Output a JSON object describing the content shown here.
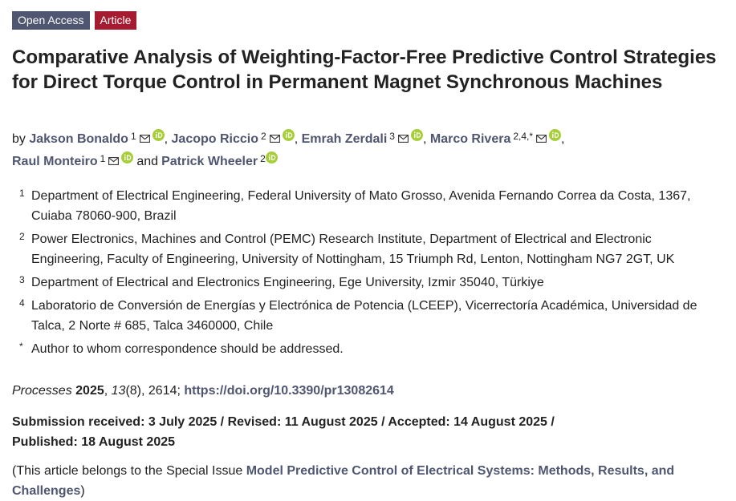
{
  "badges": {
    "open_access": "Open Access",
    "article": "Article"
  },
  "title": "Comparative Analysis of Weighting-Factor-Free Predictive Control Strategies for Direct Torque Control in Permanent Magnet Synchronous Machines",
  "authors": {
    "by": "by",
    "and": "and",
    "list": [
      {
        "name": "Jakson Bonaldo",
        "aff": "1"
      },
      {
        "name": "Jacopo Riccio",
        "aff": "2"
      },
      {
        "name": "Emrah Zerdali",
        "aff": "3"
      },
      {
        "name": "Marco Rivera",
        "aff": "2,4,*"
      },
      {
        "name": "Raul Monteiro",
        "aff": "1"
      },
      {
        "name": "Patrick Wheeler",
        "aff": "2"
      }
    ]
  },
  "affiliations": [
    {
      "num": "1",
      "text": "Department of Electrical Engineering, Federal University of Mato Grosso, Avenida Fernando Correa da Costa, 1367, Cuiaba 78060-900, Brazil"
    },
    {
      "num": "2",
      "text": "Power Electronics, Machines and Control (PEMC) Research Institute, Department of Electrical and Electronic Engineering, Faculty of Engineering, University of Nottingham, 15 Triumph Rd, Lenton, Nottingham NG7 2GT, UK"
    },
    {
      "num": "3",
      "text": "Department of Electrical and Electronics Engineering, Ege University, Izmir 35040, Türkiye"
    },
    {
      "num": "4",
      "text": "Laboratorio de Conversión de Energías y Electrónica de Potencia (LCEEP), Vicerrectoría Académica, Universidad de Talca, 2 Norte # 685, Talca 3460000, Chile"
    },
    {
      "num": "*",
      "text": "Author to whom correspondence should be addressed."
    }
  ],
  "citation": {
    "journal": "Processes",
    "year": "2025",
    "volume": "13",
    "issue": "(8)",
    "article_no": ", 2614; ",
    "doi": "https://doi.org/10.3390/pr13082614"
  },
  "dates": {
    "line1": "Submission received: 3 July 2025 / Revised: 11 August 2025 / Accepted: 14 August 2025 /",
    "line2": "Published: 18 August 2025"
  },
  "special_issue": {
    "prefix": "(This article belongs to the Special Issue ",
    "link": "Model Predictive Control of Electrical Systems: Methods, Results, and Challenges",
    "suffix": ")"
  },
  "colors": {
    "link": "#4f5671",
    "open_access_badge": "#4f5671",
    "article_badge": "#a51c30",
    "orcid": "#a6ce39"
  },
  "icons": {
    "mail": "mail-icon",
    "orcid": "orcid-icon"
  }
}
